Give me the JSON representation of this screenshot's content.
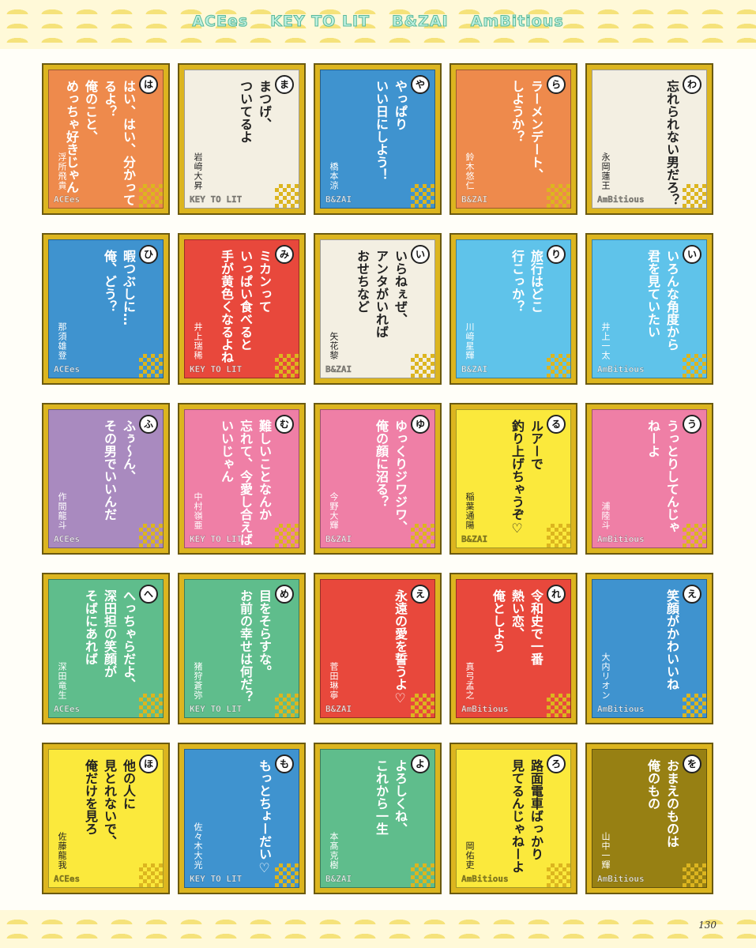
{
  "header": {
    "groups": [
      "ACEes",
      "KEY TO LIT",
      "B&ZAI",
      "AmBitious"
    ]
  },
  "cards": [
    {
      "kana": "は",
      "lines": [
        "はい、はい、分かってるよ？",
        "俺のこと、",
        "めっちゃ好きじゃん"
      ],
      "name": "浮所飛貴",
      "group": "ACEes"
    },
    {
      "kana": "ま",
      "lines": [
        "まつげ、",
        "ついてるよ"
      ],
      "name": "岩﨑大昇",
      "group": "KEY TO LIT"
    },
    {
      "kana": "や",
      "lines": [
        "やっぱり",
        "いい日にしよう！"
      ],
      "name": "橋本涼",
      "group": "B&ZAI"
    },
    {
      "kana": "ら",
      "lines": [
        "ラーメンデート、",
        "しようか？"
      ],
      "name": "鈴木悠仁",
      "group": "B&ZAI"
    },
    {
      "kana": "わ",
      "lines": [
        "忘れられない男だろ？"
      ],
      "name": "永岡蓮王",
      "group": "AmBitious"
    },
    {
      "kana": "ひ",
      "lines": [
        "暇つぶしに…",
        "俺、どう？"
      ],
      "name": "那須雄登",
      "group": "ACEes"
    },
    {
      "kana": "み",
      "lines": [
        "ミカンって",
        "いっぱい食べると",
        "手が黄色くなるよね"
      ],
      "name": "井上瑞稀",
      "group": "KEY TO LIT"
    },
    {
      "kana": "い",
      "lines": [
        "いらねぇぜ、",
        "アンタがいれば",
        "おせちなど"
      ],
      "name": "矢花黎",
      "group": "B&ZAI"
    },
    {
      "kana": "り",
      "lines": [
        "旅行はどこ",
        "行こっか？"
      ],
      "name": "川﨑星輝",
      "group": "B&ZAI"
    },
    {
      "kana": "い",
      "lines": [
        "いろんな角度から",
        "君を見ていたい"
      ],
      "name": "井上一太",
      "group": "AmBitious"
    },
    {
      "kana": "ふ",
      "lines": [
        "ふぅ〜ん、",
        "その男でいいんだ"
      ],
      "name": "作間龍斗",
      "group": "ACEes"
    },
    {
      "kana": "む",
      "lines": [
        "難しいことなんか",
        "忘れて、今愛し合えば",
        "いいじゃん"
      ],
      "name": "中村嶺亜",
      "group": "KEY TO LIT"
    },
    {
      "kana": "ゆ",
      "lines": [
        "ゆっくりジワジワ、",
        "俺の顔に沼る？"
      ],
      "name": "今野大輝",
      "group": "B&ZAI"
    },
    {
      "kana": "る",
      "lines": [
        "ルアーで",
        "釣り上げちゃうぞ♡"
      ],
      "name": "稲葉通陽",
      "group": "B&ZAI"
    },
    {
      "kana": "う",
      "lines": [
        "うっとりしてんじゃ",
        "ねーよ"
      ],
      "name": "浦陸斗",
      "group": "AmBitious"
    },
    {
      "kana": "へ",
      "lines": [
        "へっちゃらだよ、",
        "深田担の笑顔が",
        "そばにあれば"
      ],
      "name": "深田竜生",
      "group": "ACEes"
    },
    {
      "kana": "め",
      "lines": [
        "目をそらすな。",
        "お前の幸せは何だ？"
      ],
      "name": "猪狩蒼弥",
      "group": "KEY TO LIT"
    },
    {
      "kana": "え",
      "lines": [
        "永遠の愛を誓うよ♡"
      ],
      "name": "菅田琳寧",
      "group": "B&ZAI"
    },
    {
      "kana": "れ",
      "lines": [
        "令和史で一番",
        "熱い恋、",
        "俺としよう"
      ],
      "name": "真弓孟之",
      "group": "AmBitious"
    },
    {
      "kana": "え",
      "lines": [
        "笑顔がかわいいね"
      ],
      "name": "大内リオン",
      "group": "AmBitious"
    },
    {
      "kana": "ほ",
      "lines": [
        "他の人に",
        "見とれないで、",
        "俺だけを見ろ"
      ],
      "name": "佐藤龍我",
      "group": "ACEes"
    },
    {
      "kana": "も",
      "lines": [
        "もっとちょーだい♡"
      ],
      "name": "佐々木大光",
      "group": "KEY TO LIT"
    },
    {
      "kana": "よ",
      "lines": [
        "よろしくね、",
        "これから一生"
      ],
      "name": "本髙克樹",
      "group": "B&ZAI"
    },
    {
      "kana": "ろ",
      "lines": [
        "路面電車ばっかり",
        "見てるんじゃねーよ"
      ],
      "name": "岡佑吏",
      "group": "AmBitious"
    },
    {
      "kana": "を",
      "lines": [
        "おまえのものは",
        "俺のもの"
      ],
      "name": "山中一輝",
      "group": "AmBitious"
    }
  ],
  "page_number": "130"
}
